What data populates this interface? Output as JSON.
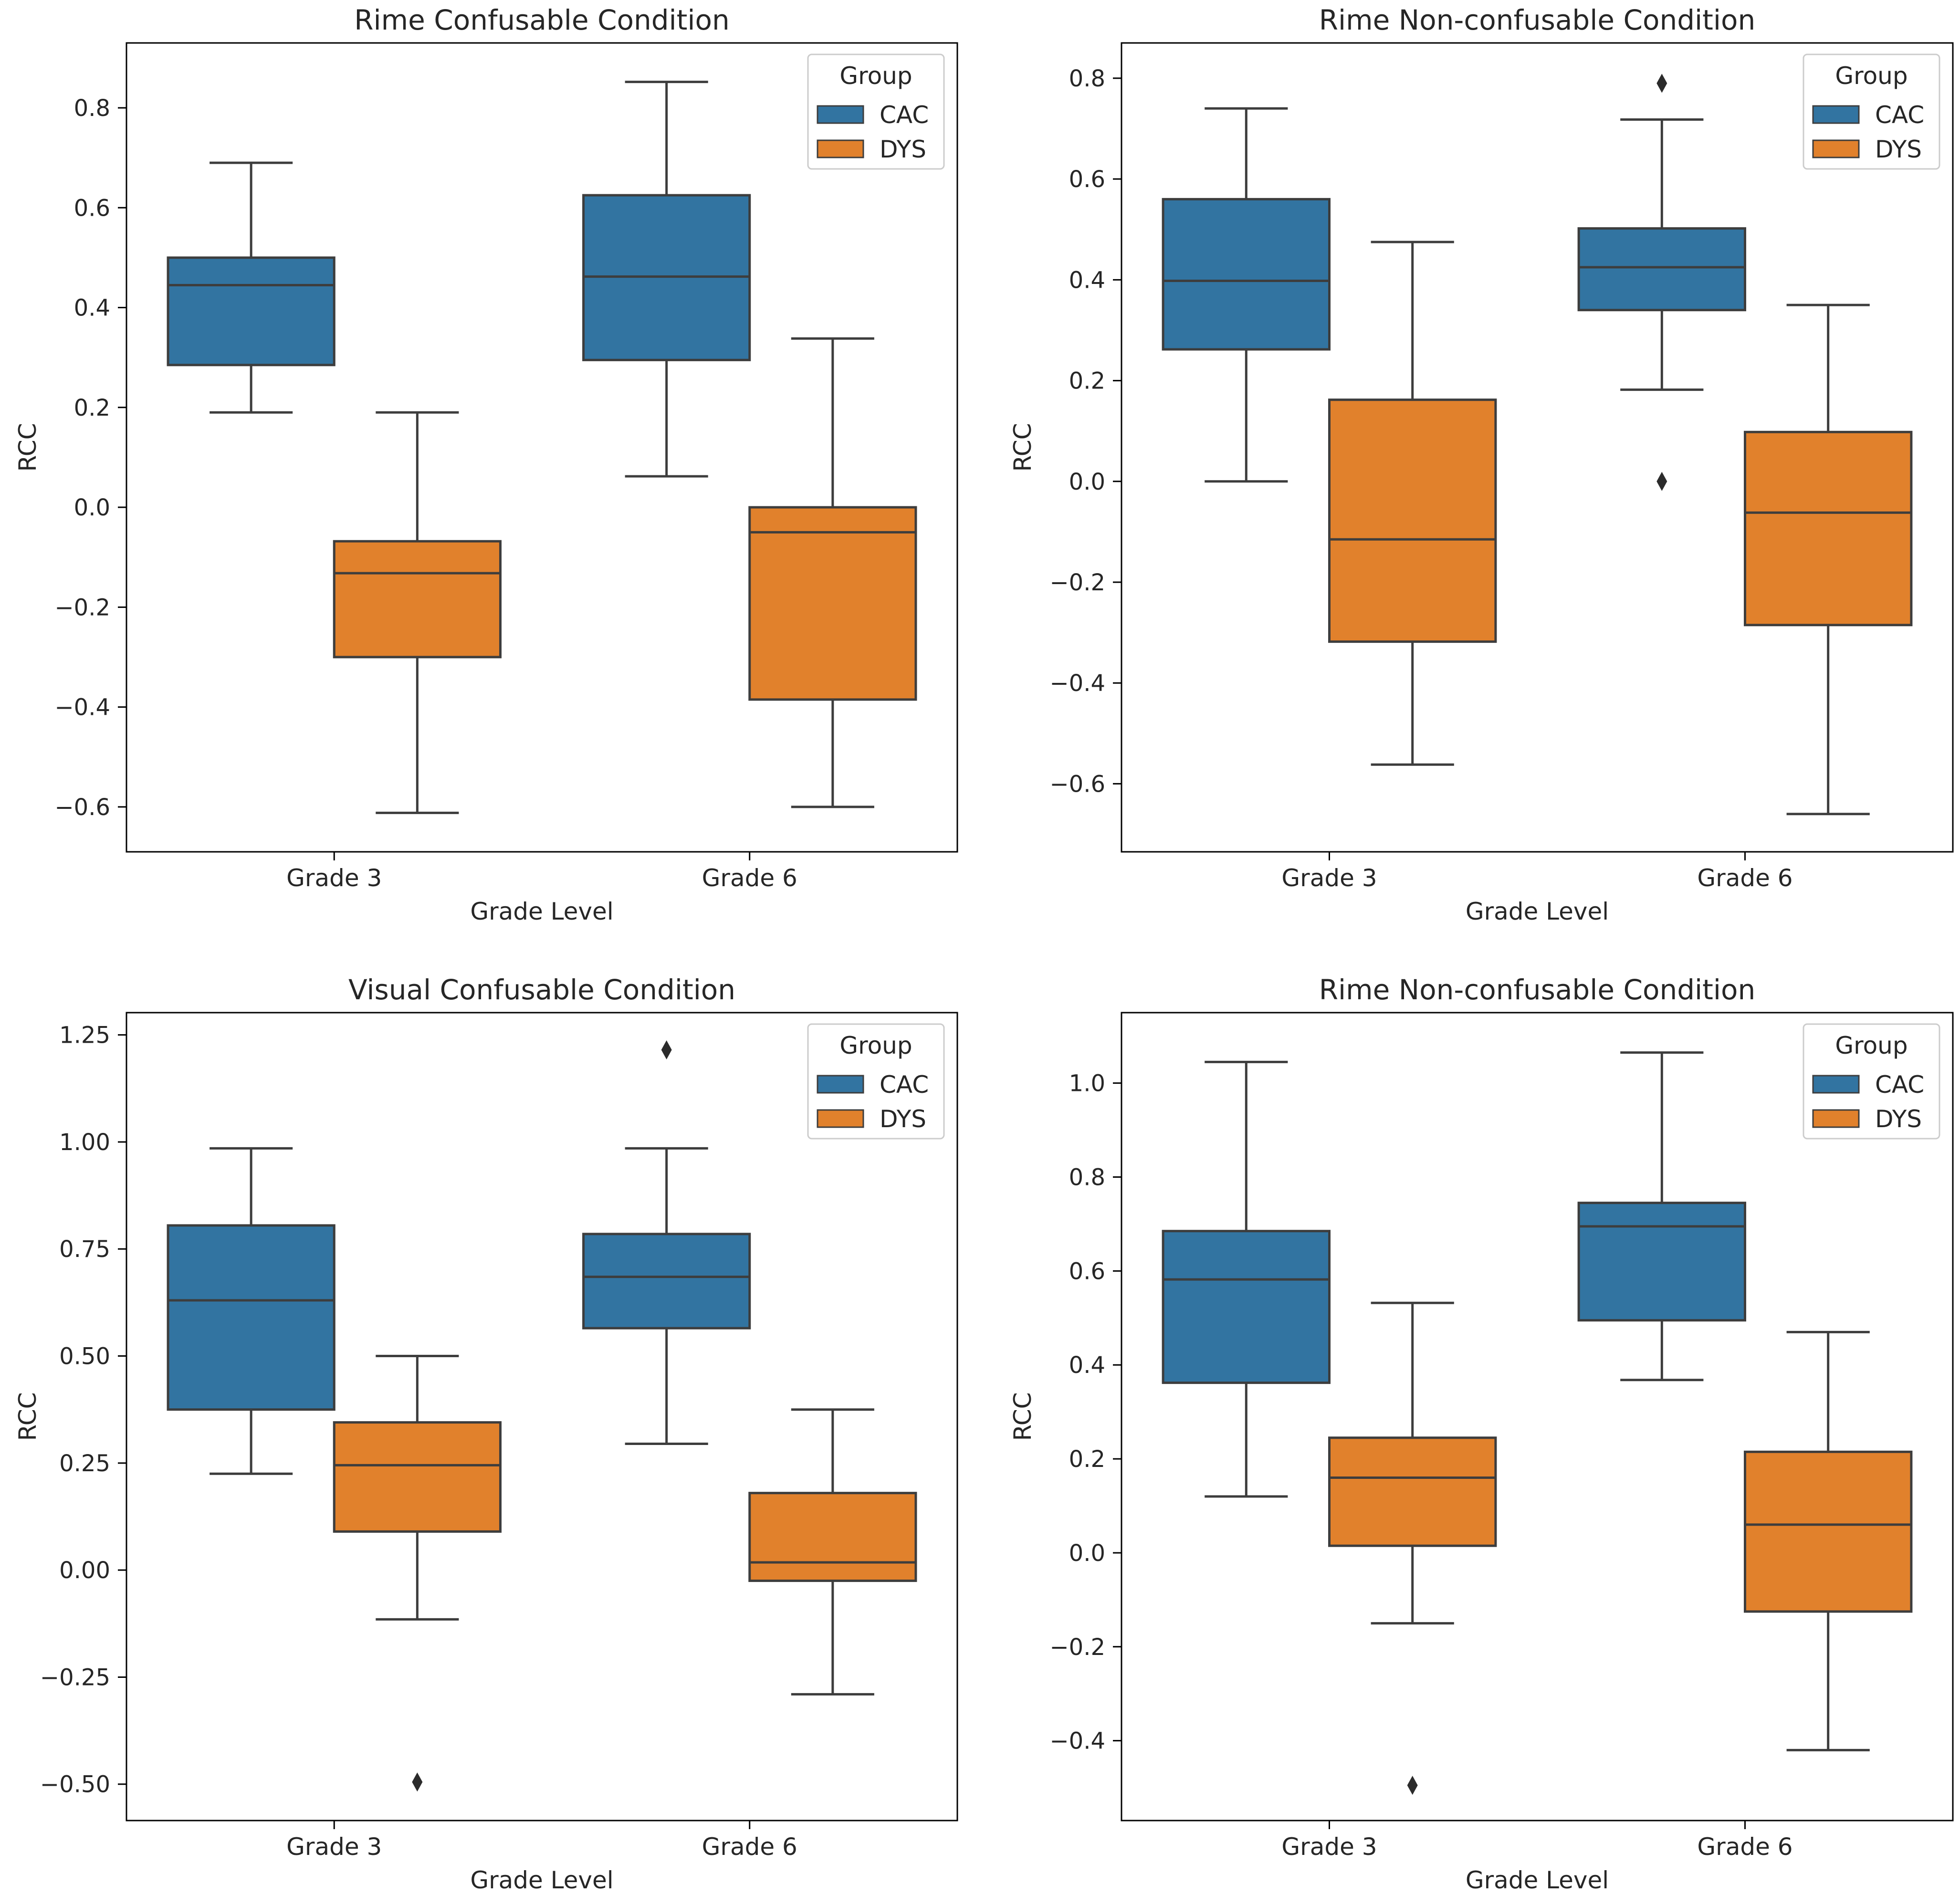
{
  "colors": {
    "CAC": "#3274a1",
    "DYS": "#e1812c",
    "line": "#3d3d3d",
    "axis": "#000000"
  },
  "chart_data": [
    {
      "type": "box",
      "title": "Rime Confusable Condition",
      "xlabel": "Grade Level",
      "ylabel": "RCC",
      "ylim": [
        -0.69,
        0.93
      ],
      "yticks": [
        -0.6,
        -0.4,
        -0.2,
        0.0,
        0.2,
        0.4,
        0.6,
        0.8
      ],
      "ytick_labels": [
        "−0.6",
        "−0.4",
        "−0.2",
        "0.0",
        "0.2",
        "0.4",
        "0.6",
        "0.8"
      ],
      "categories": [
        "Grade 3",
        "Grade 6"
      ],
      "legend": {
        "title": "Group",
        "position": "upper right",
        "entries": [
          "CAC",
          "DYS"
        ]
      },
      "series": [
        {
          "name": "CAC",
          "boxes": [
            {
              "whislo": 0.19,
              "q1": 0.285,
              "med": 0.445,
              "q3": 0.5,
              "whishi": 0.69,
              "fliers": []
            },
            {
              "whislo": 0.062,
              "q1": 0.295,
              "med": 0.462,
              "q3": 0.625,
              "whishi": 0.852,
              "fliers": []
            }
          ]
        },
        {
          "name": "DYS",
          "boxes": [
            {
              "whislo": -0.612,
              "q1": -0.3,
              "med": -0.132,
              "q3": -0.068,
              "whishi": 0.19,
              "fliers": []
            },
            {
              "whislo": -0.6,
              "q1": -0.385,
              "med": -0.05,
              "q3": 0.0,
              "whishi": 0.338,
              "fliers": []
            }
          ]
        }
      ]
    },
    {
      "type": "box",
      "title": "Rime Non-confusable Condition",
      "xlabel": "Grade Level",
      "ylabel": "RCC",
      "ylim": [
        -0.735,
        0.87
      ],
      "yticks": [
        -0.6,
        -0.4,
        -0.2,
        0.0,
        0.2,
        0.4,
        0.6,
        0.8
      ],
      "ytick_labels": [
        "−0.6",
        "−0.4",
        "−0.2",
        "0.0",
        "0.2",
        "0.4",
        "0.6",
        "0.8"
      ],
      "categories": [
        "Grade 3",
        "Grade 6"
      ],
      "legend": {
        "title": "Group",
        "position": "upper right",
        "entries": [
          "CAC",
          "DYS"
        ]
      },
      "series": [
        {
          "name": "CAC",
          "boxes": [
            {
              "whislo": 0.0,
              "q1": 0.262,
              "med": 0.398,
              "q3": 0.56,
              "whishi": 0.74,
              "fliers": []
            },
            {
              "whislo": 0.182,
              "q1": 0.34,
              "med": 0.425,
              "q3": 0.502,
              "whishi": 0.718,
              "fliers": [
                0.79,
                0.0
              ]
            }
          ]
        },
        {
          "name": "DYS",
          "boxes": [
            {
              "whislo": -0.562,
              "q1": -0.318,
              "med": -0.115,
              "q3": 0.162,
              "whishi": 0.475,
              "fliers": []
            },
            {
              "whislo": -0.66,
              "q1": -0.285,
              "med": -0.062,
              "q3": 0.098,
              "whishi": 0.35,
              "fliers": []
            }
          ]
        }
      ]
    },
    {
      "type": "box",
      "title": "Visual Confusable Condition",
      "xlabel": "Grade Level",
      "ylabel": "RCC",
      "ylim": [
        -0.585,
        1.302
      ],
      "yticks": [
        -0.5,
        -0.25,
        0.0,
        0.25,
        0.5,
        0.75,
        1.0,
        1.25
      ],
      "ytick_labels": [
        "−0.50",
        "−0.25",
        "0.00",
        "0.25",
        "0.50",
        "0.75",
        "1.00",
        "1.25"
      ],
      "categories": [
        "Grade 3",
        "Grade 6"
      ],
      "legend": {
        "title": "Group",
        "position": "upper right",
        "entries": [
          "CAC",
          "DYS"
        ]
      },
      "series": [
        {
          "name": "CAC",
          "boxes": [
            {
              "whislo": 0.225,
              "q1": 0.375,
              "med": 0.63,
              "q3": 0.805,
              "whishi": 0.985,
              "fliers": []
            },
            {
              "whislo": 0.295,
              "q1": 0.565,
              "med": 0.685,
              "q3": 0.785,
              "whishi": 0.985,
              "fliers": [
                1.215
              ]
            }
          ]
        },
        {
          "name": "DYS",
          "boxes": [
            {
              "whislo": -0.115,
              "q1": 0.09,
              "med": 0.245,
              "q3": 0.345,
              "whishi": 0.5,
              "fliers": [
                -0.495
              ]
            },
            {
              "whislo": -0.29,
              "q1": -0.025,
              "med": 0.018,
              "q3": 0.18,
              "whishi": 0.375,
              "fliers": []
            }
          ]
        }
      ]
    },
    {
      "type": "box",
      "title": "Rime Non-confusable Condition",
      "xlabel": "Grade Level",
      "ylabel": "RCC",
      "ylim": [
        -0.57,
        1.15
      ],
      "yticks": [
        -0.4,
        -0.2,
        0.0,
        0.2,
        0.4,
        0.6,
        0.8,
        1.0
      ],
      "ytick_labels": [
        "−0.4",
        "−0.2",
        "0.0",
        "0.2",
        "0.4",
        "0.6",
        "0.8",
        "1.0"
      ],
      "categories": [
        "Grade 3",
        "Grade 6"
      ],
      "legend": {
        "title": "Group",
        "position": "upper right",
        "entries": [
          "CAC",
          "DYS"
        ]
      },
      "series": [
        {
          "name": "CAC",
          "boxes": [
            {
              "whislo": 0.12,
              "q1": 0.362,
              "med": 0.582,
              "q3": 0.685,
              "whishi": 1.045,
              "fliers": []
            },
            {
              "whislo": 0.368,
              "q1": 0.495,
              "med": 0.695,
              "q3": 0.745,
              "whishi": 1.065,
              "fliers": []
            }
          ]
        },
        {
          "name": "DYS",
          "boxes": [
            {
              "whislo": -0.15,
              "q1": 0.015,
              "med": 0.16,
              "q3": 0.245,
              "whishi": 0.532,
              "fliers": [
                -0.495
              ]
            },
            {
              "whislo": -0.42,
              "q1": -0.125,
              "med": 0.06,
              "q3": 0.215,
              "whishi": 0.47,
              "fliers": []
            }
          ]
        }
      ]
    }
  ]
}
